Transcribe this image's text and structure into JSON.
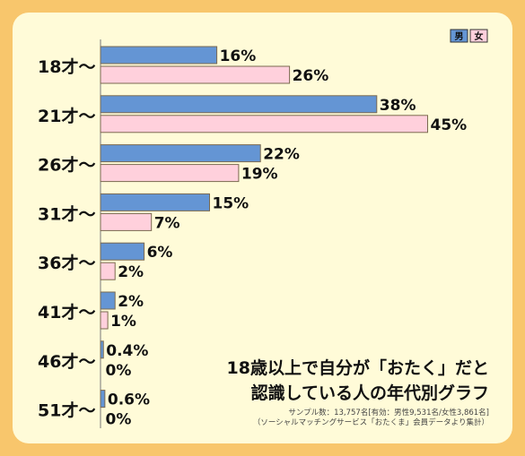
{
  "chart_data": {
    "type": "bar",
    "orientation": "horizontal",
    "categories": [
      "18才～",
      "21才～",
      "26才～",
      "31才～",
      "36才～",
      "41才～",
      "46才～",
      "51才～"
    ],
    "series": [
      {
        "name": "男",
        "color": "#6495d4",
        "values": [
          16,
          38,
          22,
          15,
          6,
          2,
          0.4,
          0.6
        ],
        "labels": [
          "16%",
          "38%",
          "22%",
          "15%",
          "6%",
          "2%",
          "0.4%",
          "0.6%"
        ]
      },
      {
        "name": "女",
        "color": "#ffd0dc",
        "values": [
          26,
          45,
          19,
          7,
          2,
          1,
          0,
          0
        ],
        "labels": [
          "26%",
          "45%",
          "19%",
          "7%",
          "2%",
          "1%",
          "0%",
          "0%"
        ]
      }
    ],
    "xlim": [
      0,
      45
    ],
    "legend_position": "top-right",
    "title_lines": [
      "18歳以上で自分が「おたく」だと",
      "認識している人の年代別グラフ"
    ],
    "notes": [
      "サンプル数：13,757名[有効：男性9,531名/女性3,861名]",
      "（ソーシャルマッチングサービス「おたくま」会員データより集計）"
    ]
  },
  "colors": {
    "frame": "#f8c66c",
    "panel": "#fffbd8",
    "bar_border": "#7a6a50"
  }
}
